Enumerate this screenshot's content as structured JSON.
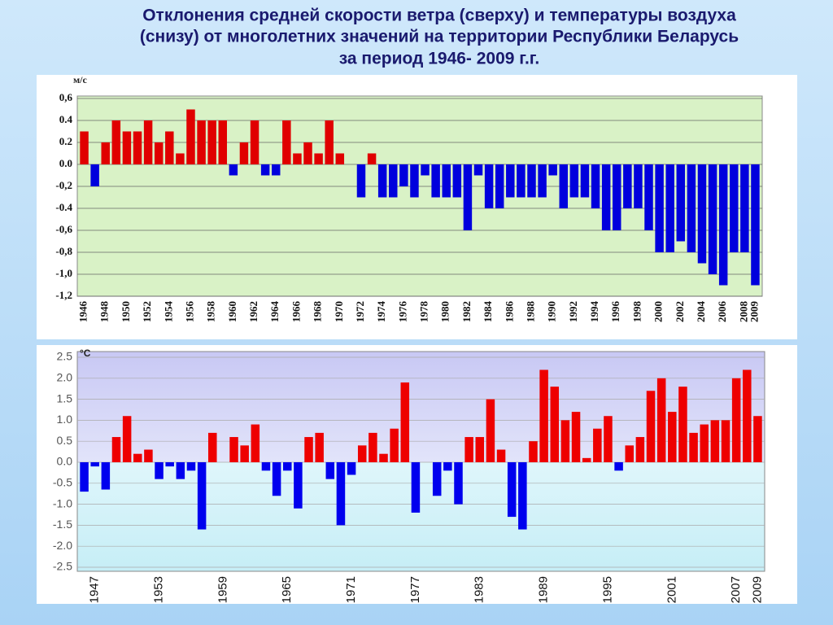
{
  "title": [
    "Отклонения средней скорости ветра (сверху) и температуры воздуха",
    "(снизу) от многолетних значений на территории Республики Беларусь",
    "за период 1946- 2009 г.г."
  ],
  "chart_data": [
    {
      "type": "bar",
      "unit": "м/с",
      "categories": [
        "1946",
        null,
        "1948",
        null,
        "1950",
        null,
        "1952",
        null,
        "1954",
        null,
        "1956",
        null,
        "1958",
        null,
        "1960",
        null,
        "1962",
        null,
        "1964",
        null,
        "1966",
        null,
        "1968",
        null,
        "1970",
        null,
        "1972",
        null,
        "1974",
        null,
        "1976",
        null,
        "1978",
        null,
        "1980",
        null,
        "1982",
        null,
        "1984",
        null,
        "1986",
        null,
        "1988",
        null,
        "1990",
        null,
        "1992",
        null,
        "1994",
        null,
        "1996",
        null,
        "1998",
        null,
        "2000",
        null,
        "2002",
        null,
        "2004",
        null,
        "2006",
        null,
        "2008",
        "2009"
      ],
      "values": [
        0.3,
        -0.2,
        0.2,
        0.4,
        0.3,
        0.3,
        0.4,
        0.2,
        0.3,
        0.1,
        0.5,
        0.4,
        0.4,
        0.4,
        -0.1,
        0.2,
        0.4,
        -0.1,
        -0.1,
        0.4,
        0.1,
        0.2,
        0.1,
        0.4,
        0.1,
        0,
        -0.3,
        0.1,
        -0.3,
        -0.3,
        -0.2,
        -0.3,
        -0.1,
        -0.3,
        -0.3,
        -0.3,
        -0.6,
        -0.1,
        -0.4,
        -0.4,
        -0.3,
        -0.3,
        -0.3,
        -0.3,
        -0.1,
        -0.4,
        -0.3,
        -0.3,
        -0.4,
        -0.6,
        -0.6,
        -0.4,
        -0.4,
        -0.6,
        -0.8,
        -0.8,
        -0.7,
        -0.8,
        -0.9,
        -1.0,
        -1.1,
        -0.8,
        -0.8,
        -1.1
      ],
      "ylim": [
        -1.2,
        0.6
      ],
      "yticks": [
        {
          "value": 0.6,
          "label": "0,6"
        },
        {
          "value": 0.4,
          "label": "0.4"
        },
        {
          "value": 0.2,
          "label": "0.2"
        },
        {
          "value": 0,
          "label": "0.0"
        },
        {
          "value": -0.2,
          "label": "-0,2"
        },
        {
          "value": -0.4,
          "label": "-0.4"
        },
        {
          "value": -0.6,
          "label": "-0,6"
        },
        {
          "value": -0.8,
          "label": "-0,8"
        },
        {
          "value": -1.0,
          "label": "-1,0"
        },
        {
          "value": -1.2,
          "label": "-1,2"
        }
      ],
      "grid": true,
      "color_positive": "#e00000",
      "color_negative": "#0000dd"
    },
    {
      "type": "bar",
      "unit": "°С",
      "categories": [
        null,
        "1947",
        null,
        null,
        null,
        null,
        null,
        "1953",
        null,
        null,
        null,
        null,
        null,
        "1959",
        null,
        null,
        null,
        null,
        null,
        "1965",
        null,
        null,
        null,
        null,
        null,
        "1971",
        null,
        null,
        null,
        null,
        null,
        "1977",
        null,
        null,
        null,
        null,
        null,
        "1983",
        null,
        null,
        null,
        null,
        null,
        "1989",
        null,
        null,
        null,
        null,
        null,
        "1995",
        null,
        null,
        null,
        null,
        null,
        "2001",
        null,
        null,
        null,
        null,
        null,
        "2007",
        null,
        "2009"
      ],
      "values": [
        -0.7,
        -0.1,
        -0.65,
        0.6,
        1.1,
        0.2,
        0.3,
        -0.4,
        -0.1,
        -0.4,
        -0.2,
        -1.6,
        0.7,
        0,
        0.6,
        0.4,
        0.9,
        -0.2,
        -0.8,
        -0.2,
        -1.1,
        0.6,
        0.7,
        -0.4,
        -1.5,
        -0.3,
        0.4,
        0.7,
        0.2,
        0.8,
        1.9,
        -1.2,
        0,
        -0.8,
        -0.2,
        -1.0,
        0.6,
        0.6,
        1.5,
        0.3,
        -1.3,
        -1.6,
        0.5,
        2.2,
        1.8,
        1.0,
        1.2,
        0.1,
        0.8,
        1.1,
        -0.2,
        0.4,
        0.6,
        1.7,
        2.0,
        1.2,
        1.8,
        0.7,
        0.9,
        1.0,
        1.0,
        2.0,
        2.2,
        1.1
      ],
      "ylim": [
        -2.5,
        2.5
      ],
      "yticks": [
        2.5,
        {
          "value": 2.0,
          "label": "2.0"
        },
        1.5,
        {
          "value": 1.0,
          "label": "1.0"
        },
        0.5,
        {
          "value": 0,
          "label": "0.0"
        },
        -0.5,
        {
          "value": -1.0,
          "label": "-1.0"
        },
        -1.5,
        {
          "value": -2.0,
          "label": "-2.0"
        },
        -2.5
      ],
      "grid": true,
      "color_positive": "#ee0000",
      "color_negative": "#0000ee"
    }
  ]
}
